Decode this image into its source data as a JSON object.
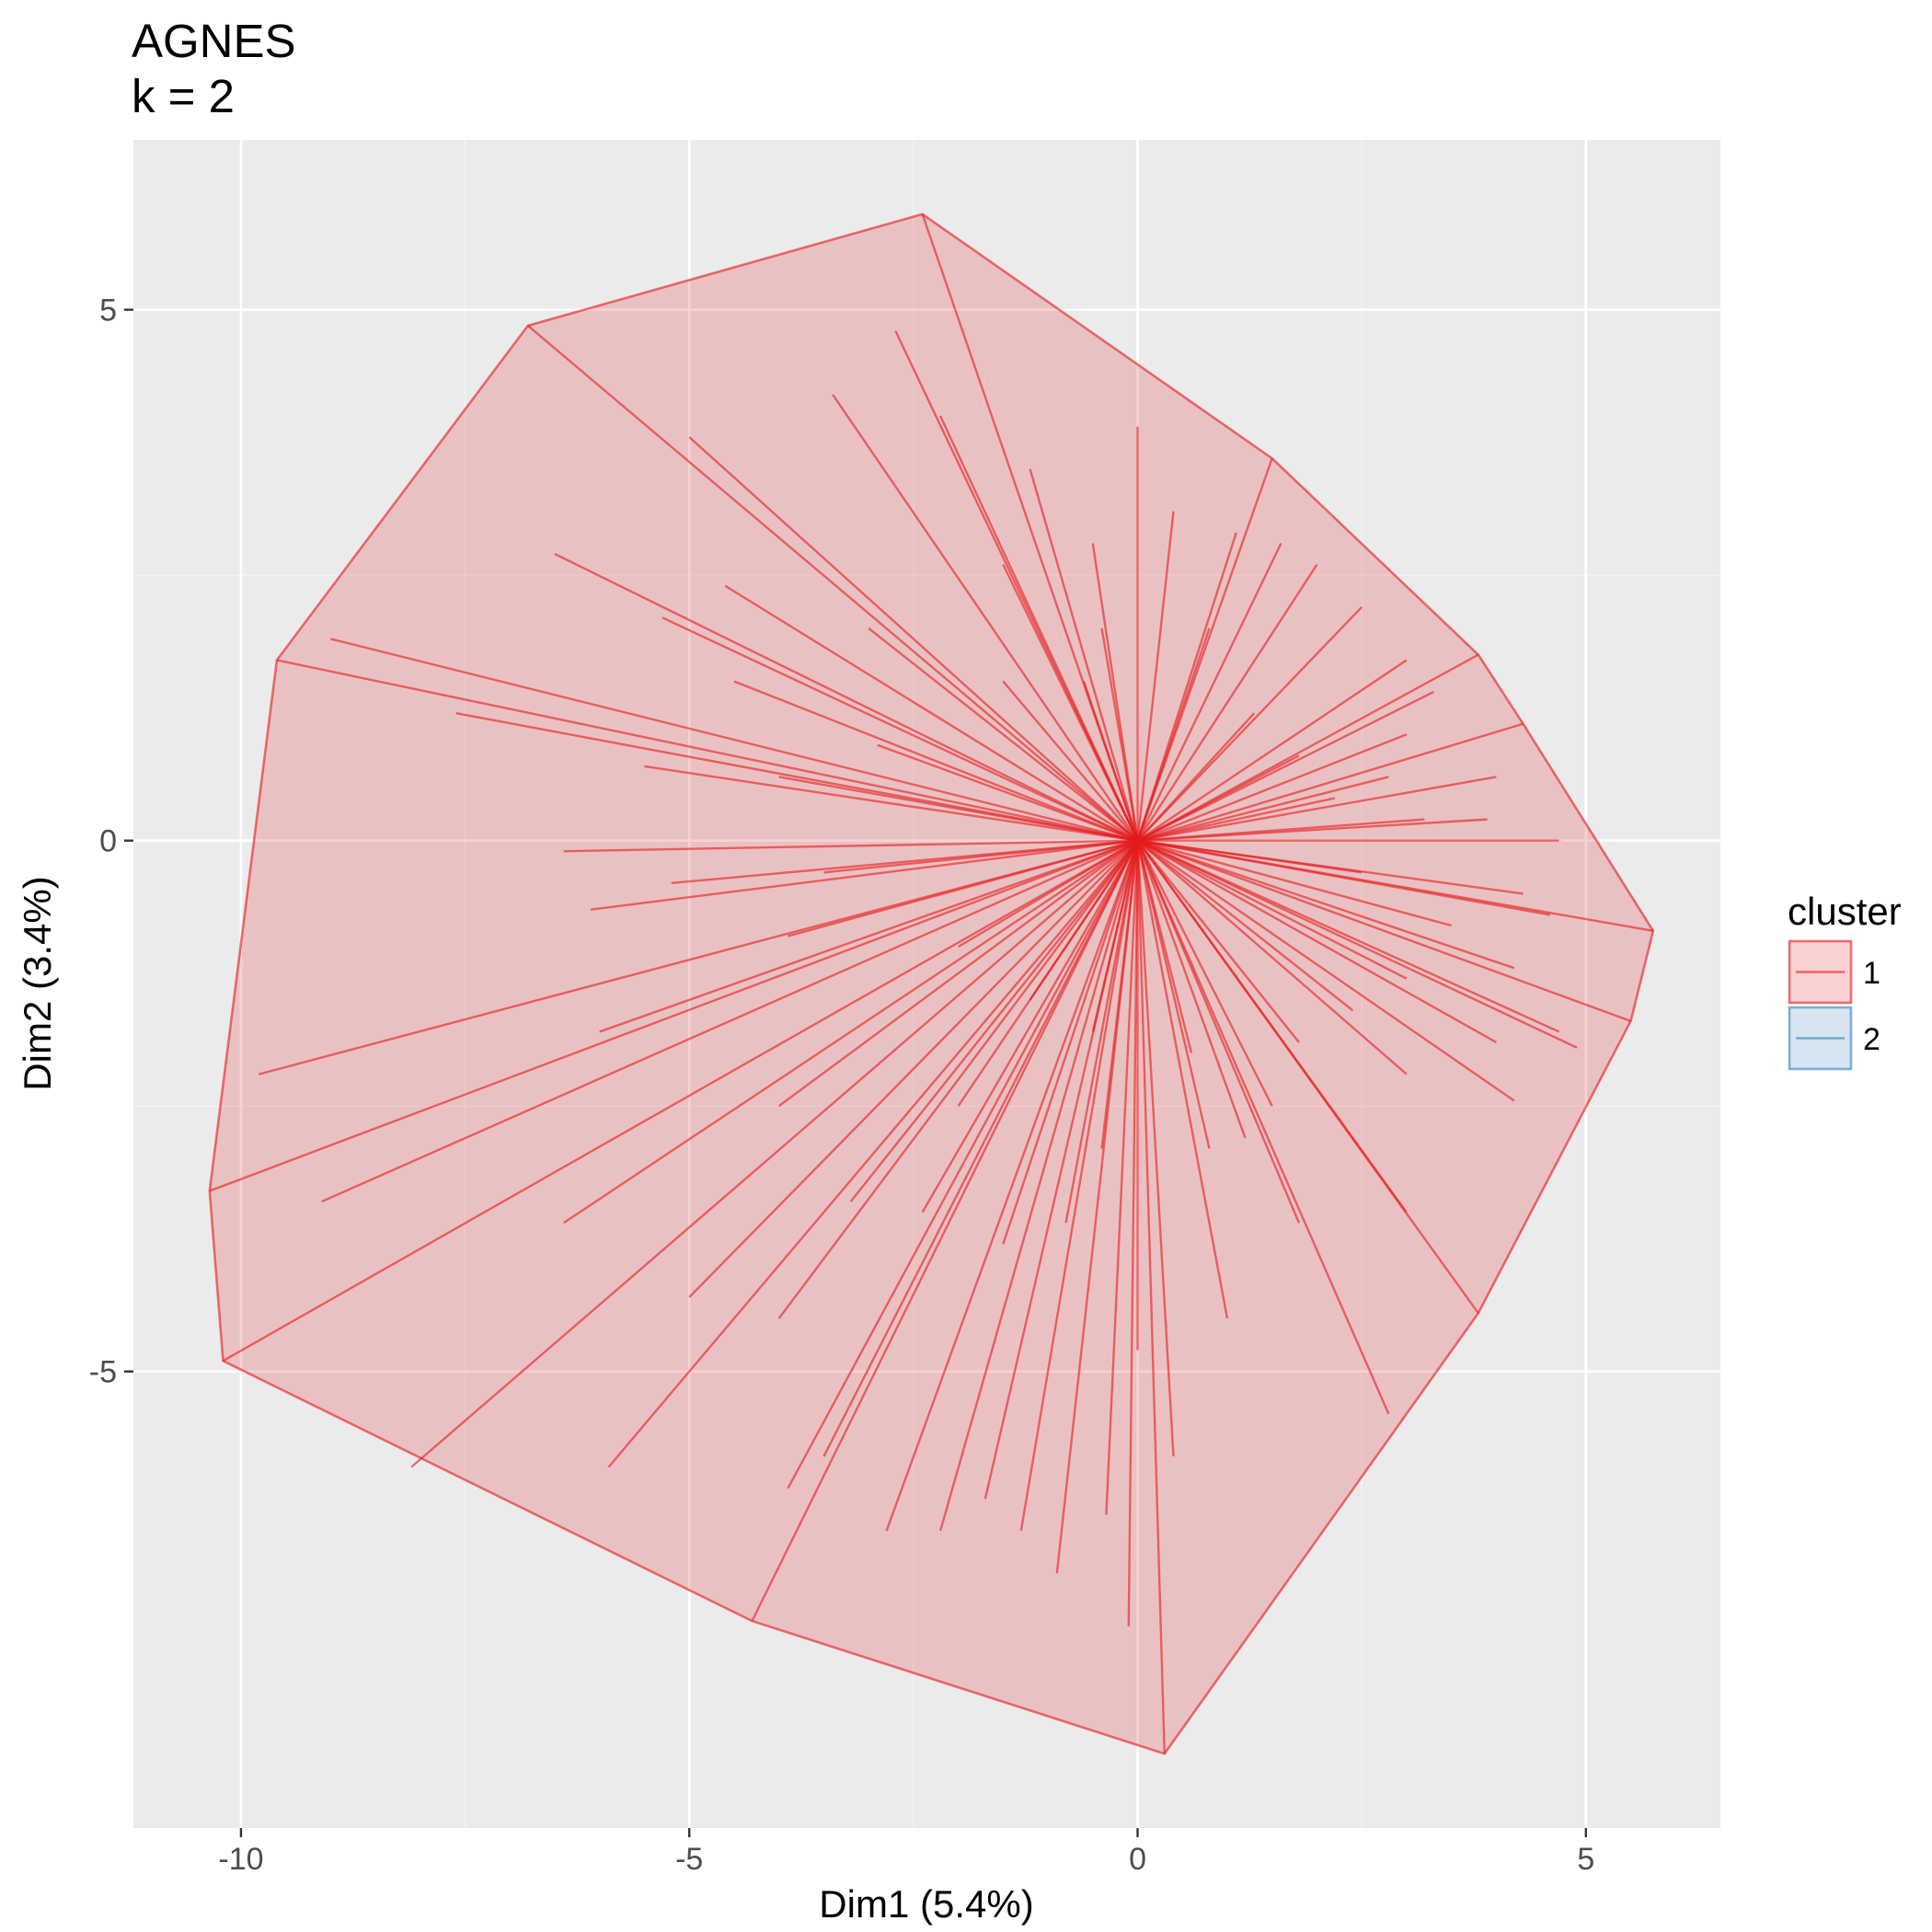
{
  "chart_data": {
    "type": "scatter",
    "title": "AGNES",
    "subtitle": "k = 2",
    "xlabel": "Dim1 (5.4%)",
    "ylabel": "Dim2 (3.4%)",
    "xlim": [
      -11.2,
      6.5
    ],
    "ylim": [
      -9.3,
      6.6
    ],
    "x_ticks": [
      -10,
      -5,
      0,
      5
    ],
    "y_ticks": [
      -5,
      0,
      5
    ],
    "x_tick_labels": [
      "-10",
      "-5",
      "0",
      "5"
    ],
    "y_tick_labels": [
      "-5",
      "0",
      "5"
    ],
    "grid": true,
    "panel_background": "#ebebeb",
    "legend": {
      "title": "cluster",
      "position": "right",
      "entries": [
        {
          "label": "1",
          "color": "#e41a1c"
        },
        {
          "label": "2",
          "color": "#377eb8"
        }
      ]
    },
    "series": [
      {
        "name": "1",
        "color": "#e41a1c",
        "center": [
          0.0,
          0.0
        ],
        "hull": [
          [
            -2.4,
            5.9
          ],
          [
            1.5,
            3.6
          ],
          [
            3.8,
            1.75
          ],
          [
            4.3,
            1.1
          ],
          [
            5.75,
            -0.85
          ],
          [
            5.5,
            -1.7
          ],
          [
            3.8,
            -4.45
          ],
          [
            0.3,
            -8.6
          ],
          [
            -4.3,
            -7.35
          ],
          [
            -10.2,
            -4.9
          ],
          [
            -10.35,
            -3.3
          ],
          [
            -9.6,
            1.7
          ],
          [
            -6.8,
            4.85
          ]
        ],
        "points": [
          [
            -2.4,
            5.9
          ],
          [
            1.5,
            3.6
          ],
          [
            3.8,
            1.75
          ],
          [
            4.3,
            1.1
          ],
          [
            5.75,
            -0.85
          ],
          [
            5.5,
            -1.7
          ],
          [
            3.8,
            -4.45
          ],
          [
            0.3,
            -8.6
          ],
          [
            -4.3,
            -7.35
          ],
          [
            -10.2,
            -4.9
          ],
          [
            -10.35,
            -3.3
          ],
          [
            -9.6,
            1.7
          ],
          [
            -6.8,
            4.85
          ],
          [
            -9.0,
            1.9
          ],
          [
            -7.6,
            1.2
          ],
          [
            -6.5,
            2.7
          ],
          [
            -5.0,
            3.8
          ],
          [
            -3.4,
            4.2
          ],
          [
            -2.7,
            4.8
          ],
          [
            -2.2,
            4.0
          ],
          [
            -1.2,
            3.5
          ],
          [
            0.0,
            3.9
          ],
          [
            0.4,
            3.1
          ],
          [
            1.1,
            2.9
          ],
          [
            1.6,
            2.8
          ],
          [
            2.0,
            2.6
          ],
          [
            2.5,
            2.2
          ],
          [
            3.0,
            1.7
          ],
          [
            3.3,
            1.4
          ],
          [
            3.0,
            1.0
          ],
          [
            4.0,
            0.6
          ],
          [
            3.9,
            0.2
          ],
          [
            4.7,
            0.0
          ],
          [
            4.3,
            -0.5
          ],
          [
            4.6,
            -0.7
          ],
          [
            4.2,
            -1.2
          ],
          [
            4.7,
            -1.8
          ],
          [
            4.0,
            -1.9
          ],
          [
            4.9,
            -1.95
          ],
          [
            4.2,
            -2.45
          ],
          [
            3.0,
            -2.2
          ],
          [
            3.0,
            -3.5
          ],
          [
            2.8,
            -5.4
          ],
          [
            1.8,
            -3.6
          ],
          [
            1.0,
            -4.5
          ],
          [
            0.8,
            -2.9
          ],
          [
            0.0,
            -4.8
          ],
          [
            0.4,
            -5.8
          ],
          [
            -0.1,
            -7.4
          ],
          [
            -0.35,
            -6.35
          ],
          [
            -0.9,
            -6.9
          ],
          [
            -1.3,
            -6.5
          ],
          [
            -1.7,
            -6.2
          ],
          [
            -2.2,
            -6.5
          ],
          [
            -2.8,
            -6.5
          ],
          [
            -3.5,
            -5.8
          ],
          [
            -3.9,
            -6.1
          ],
          [
            -4.0,
            -4.5
          ],
          [
            -5.0,
            -4.3
          ],
          [
            -5.9,
            -5.9
          ],
          [
            -6.4,
            -3.6
          ],
          [
            -8.1,
            -5.9
          ],
          [
            -9.1,
            -3.4
          ],
          [
            -9.8,
            -2.2
          ],
          [
            -6.0,
            -1.8
          ],
          [
            -4.0,
            -2.5
          ],
          [
            -2.0,
            -2.5
          ],
          [
            -3.9,
            -0.9
          ],
          [
            -6.1,
            -0.65
          ],
          [
            -5.2,
            -0.4
          ],
          [
            -6.4,
            -0.1
          ],
          [
            -3.5,
            -0.3
          ],
          [
            -2.0,
            -1.0
          ],
          [
            -1.2,
            -1.5
          ],
          [
            -0.5,
            -1.8
          ],
          [
            -5.5,
            0.7
          ],
          [
            -4.0,
            0.6
          ],
          [
            -2.9,
            0.9
          ],
          [
            -1.5,
            1.5
          ],
          [
            -4.5,
            1.5
          ],
          [
            -5.3,
            2.1
          ],
          [
            -4.6,
            2.4
          ],
          [
            -3.0,
            2.0
          ],
          [
            -1.5,
            2.6
          ],
          [
            -0.6,
            1.5
          ],
          [
            -0.5,
            2.8
          ],
          [
            -0.4,
            2.0
          ],
          [
            0.8,
            2.0
          ],
          [
            1.3,
            1.2
          ],
          [
            1.8,
            0.8
          ],
          [
            2.2,
            0.4
          ],
          [
            2.8,
            0.6
          ],
          [
            3.2,
            0.2
          ],
          [
            2.5,
            -0.3
          ],
          [
            3.5,
            -0.8
          ],
          [
            3.0,
            -1.3
          ],
          [
            2.4,
            -1.6
          ],
          [
            1.8,
            -1.9
          ],
          [
            1.5,
            -2.5
          ],
          [
            1.2,
            -2.8
          ],
          [
            0.6,
            -2.0
          ],
          [
            -0.4,
            -2.9
          ],
          [
            -0.8,
            -3.6
          ],
          [
            -1.5,
            -3.8
          ],
          [
            -2.4,
            -3.5
          ],
          [
            -3.2,
            -3.4
          ]
        ]
      },
      {
        "name": "2",
        "color": "#377eb8",
        "center": null,
        "hull": [],
        "points": []
      }
    ]
  }
}
